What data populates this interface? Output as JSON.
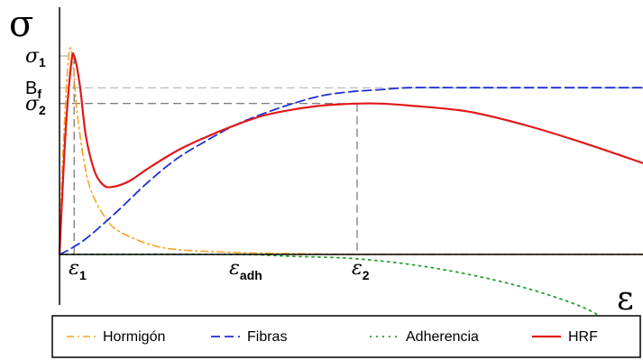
{
  "chart_data": {
    "type": "line",
    "ylabel": "σ",
    "xlabel": "ε",
    "xlim": [
      0,
      1
    ],
    "ylim": [
      -0.38,
      1.3
    ],
    "grid": false,
    "legend_placement": "bottom",
    "y_markers": [
      {
        "id": "sigma1",
        "base": "σ",
        "sub": "1",
        "value": 1.0
      },
      {
        "id": "bf",
        "base": "B",
        "sub": "f",
        "value": 0.84
      },
      {
        "id": "sigma2",
        "base": "σ",
        "sub": "2",
        "value": 0.76
      }
    ],
    "x_markers": [
      {
        "id": "eps1",
        "base": "ε",
        "sub": "1",
        "value": 0.025
      },
      {
        "id": "epsadh",
        "base": "ε",
        "sub": "adh",
        "value": 0.3
      },
      {
        "id": "eps2",
        "base": "ε",
        "sub": "2",
        "value": 0.51
      }
    ],
    "series": [
      {
        "name": "Hormigón",
        "color": "#f5a623",
        "dash": "dash-dot",
        "x": [
          0,
          0.005,
          0.015,
          0.022,
          0.03,
          0.045,
          0.06,
          0.08,
          0.1,
          0.15,
          0.2,
          0.3,
          0.4,
          0.51,
          0.6,
          1.0
        ],
        "y": [
          0,
          0.45,
          0.98,
          1.0,
          0.72,
          0.42,
          0.28,
          0.18,
          0.12,
          0.055,
          0.025,
          0.01,
          0.004,
          0.0,
          0.0,
          0.0
        ]
      },
      {
        "name": "Fibras",
        "color": "#1f2fd6",
        "dash": "dashed",
        "x": [
          0,
          0.02,
          0.05,
          0.1,
          0.15,
          0.2,
          0.25,
          0.3,
          0.35,
          0.4,
          0.45,
          0.5,
          0.55,
          0.6,
          0.7,
          0.8,
          0.9,
          1.0
        ],
        "y": [
          0,
          0.03,
          0.09,
          0.22,
          0.36,
          0.48,
          0.57,
          0.65,
          0.71,
          0.76,
          0.8,
          0.82,
          0.83,
          0.84,
          0.84,
          0.84,
          0.84,
          0.84
        ]
      },
      {
        "name": "Adherencia",
        "color": "#22a02a",
        "dash": "dotted",
        "x": [
          0,
          0.3,
          0.4,
          0.5,
          0.6,
          0.7,
          0.8,
          0.9,
          0.95
        ],
        "y": [
          0,
          0.0,
          -0.01,
          -0.02,
          -0.05,
          -0.1,
          -0.17,
          -0.27,
          -0.36
        ]
      },
      {
        "name": "HRF",
        "color": "#e0191a",
        "dash": "solid",
        "x": [
          0,
          0.01,
          0.02,
          0.025,
          0.035,
          0.045,
          0.06,
          0.075,
          0.09,
          0.12,
          0.15,
          0.2,
          0.25,
          0.3,
          0.35,
          0.4,
          0.45,
          0.51,
          0.55,
          0.6,
          0.7,
          0.8,
          0.9,
          1.0
        ],
        "y": [
          0,
          0.6,
          0.96,
          1.0,
          0.85,
          0.6,
          0.42,
          0.35,
          0.34,
          0.37,
          0.43,
          0.52,
          0.59,
          0.65,
          0.7,
          0.73,
          0.75,
          0.76,
          0.76,
          0.75,
          0.72,
          0.65,
          0.56,
          0.46
        ]
      }
    ]
  }
}
